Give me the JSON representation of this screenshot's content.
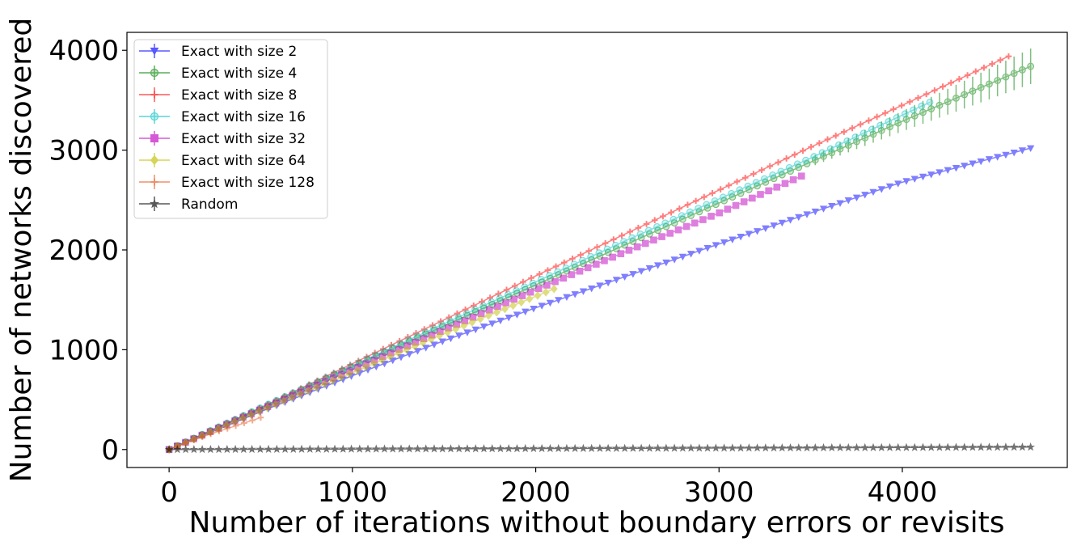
{
  "chart_data": {
    "type": "line",
    "title": "",
    "xlabel": "Number of iterations without boundary errors or revisits",
    "ylabel": "Number of networks discovered",
    "xlim": [
      -230,
      4900
    ],
    "ylim": [
      -180,
      4180
    ],
    "xticks": [
      0,
      1000,
      2000,
      3000,
      4000
    ],
    "yticks": [
      0,
      1000,
      2000,
      3000,
      4000
    ],
    "grid": false,
    "legend_position": "top-left",
    "series": [
      {
        "name": "Exact with size 2",
        "color": "#0000ff",
        "marker": "triangle-down",
        "x_end": 4700,
        "y_end": 3020,
        "points": [
          [
            0,
            0
          ],
          [
            500,
            380
          ],
          [
            1000,
            740
          ],
          [
            1500,
            1090
          ],
          [
            2000,
            1420
          ],
          [
            2500,
            1740
          ],
          [
            3000,
            2060
          ],
          [
            3500,
            2370
          ],
          [
            4000,
            2680
          ],
          [
            4700,
            3020
          ]
        ]
      },
      {
        "name": "Exact with size 4",
        "color": "#008000",
        "marker": "circle",
        "x_end": 4700,
        "y_end": 3840,
        "points": [
          [
            0,
            0
          ],
          [
            500,
            410
          ],
          [
            1000,
            830
          ],
          [
            1500,
            1240
          ],
          [
            2000,
            1650
          ],
          [
            2500,
            2060
          ],
          [
            3000,
            2470
          ],
          [
            3500,
            2880
          ],
          [
            4000,
            3290
          ],
          [
            4700,
            3840
          ]
        ]
      },
      {
        "name": "Exact with size 8",
        "color": "#ff0000",
        "marker": "plus",
        "x_end": 4580,
        "y_end": 3940,
        "points": [
          [
            0,
            0
          ],
          [
            500,
            420
          ],
          [
            1000,
            860
          ],
          [
            1500,
            1300
          ],
          [
            2000,
            1740
          ],
          [
            2500,
            2170
          ],
          [
            3000,
            2600
          ],
          [
            3500,
            3030
          ],
          [
            4000,
            3450
          ],
          [
            4580,
            3940
          ]
        ]
      },
      {
        "name": "Exact with size 16",
        "color": "#00bfbf",
        "marker": "circle",
        "x_end": 4150,
        "y_end": 3480,
        "points": [
          [
            0,
            0
          ],
          [
            500,
            420
          ],
          [
            1000,
            840
          ],
          [
            1500,
            1260
          ],
          [
            2000,
            1680
          ],
          [
            2500,
            2100
          ],
          [
            3000,
            2510
          ],
          [
            3500,
            2920
          ],
          [
            4150,
            3480
          ]
        ]
      },
      {
        "name": "Exact with size 32",
        "color": "#bf00bf",
        "marker": "square",
        "x_end": 3450,
        "y_end": 2740,
        "points": [
          [
            0,
            0
          ],
          [
            500,
            400
          ],
          [
            1000,
            800
          ],
          [
            1500,
            1200
          ],
          [
            2000,
            1600
          ],
          [
            2500,
            1990
          ],
          [
            3000,
            2370
          ],
          [
            3450,
            2740
          ]
        ]
      },
      {
        "name": "Exact with size 64",
        "color": "#bfbf00",
        "marker": "diamond",
        "x_end": 2100,
        "y_end": 1610,
        "points": [
          [
            0,
            0
          ],
          [
            500,
            390
          ],
          [
            1000,
            770
          ],
          [
            1500,
            1160
          ],
          [
            2100,
            1610
          ]
        ]
      },
      {
        "name": "Exact with size 128",
        "color": "#e4571c",
        "marker": "plus",
        "x_end": 500,
        "y_end": 320,
        "points": [
          [
            0,
            0
          ],
          [
            100,
            70
          ],
          [
            200,
            140
          ],
          [
            300,
            200
          ],
          [
            400,
            260
          ],
          [
            500,
            320
          ]
        ]
      },
      {
        "name": "Random",
        "color": "#000000",
        "marker": "star",
        "x_end": 4700,
        "y_end": 25,
        "points": [
          [
            0,
            0
          ],
          [
            1000,
            5
          ],
          [
            2000,
            10
          ],
          [
            3000,
            15
          ],
          [
            4000,
            20
          ],
          [
            4700,
            25
          ]
        ]
      }
    ]
  }
}
